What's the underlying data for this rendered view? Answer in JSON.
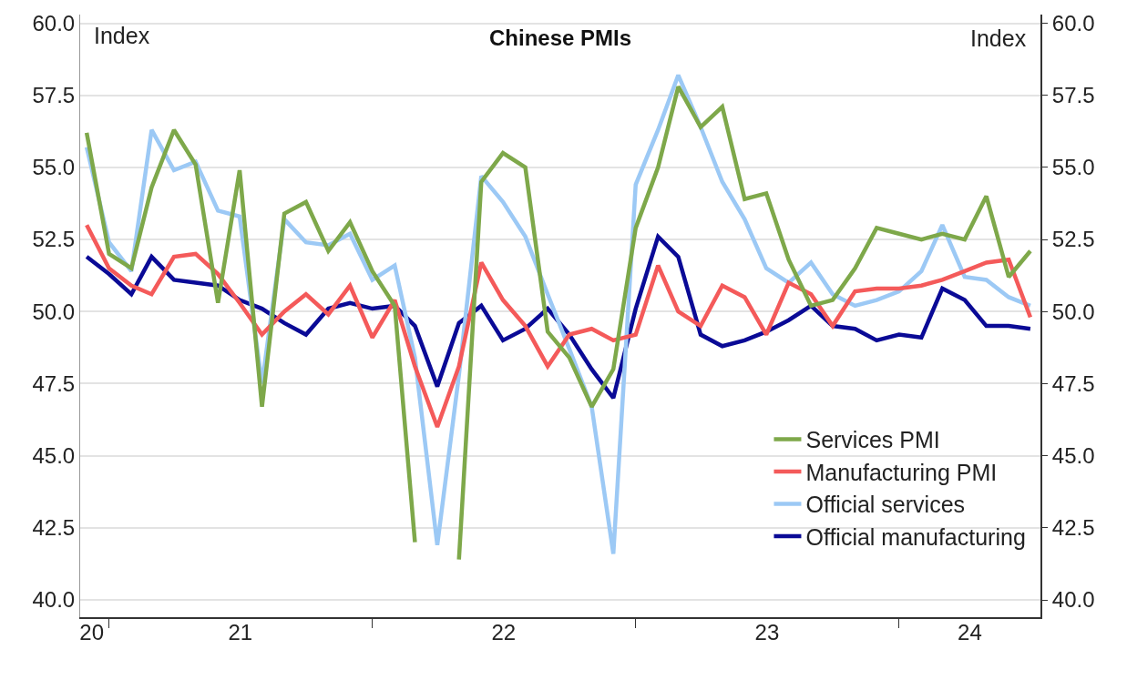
{
  "chart_data": {
    "type": "line",
    "title": "Chinese PMIs",
    "ylabel": "Index",
    "y2label": "Index",
    "x": [
      "2020-12",
      "2021-01",
      "2021-02",
      "2021-03",
      "2021-04",
      "2021-05",
      "2021-06",
      "2021-07",
      "2021-08",
      "2021-09",
      "2021-10",
      "2021-11",
      "2021-12",
      "2022-01",
      "2022-02",
      "2022-03",
      "2022-04",
      "2022-05",
      "2022-06",
      "2022-07",
      "2022-08",
      "2022-09",
      "2022-10",
      "2022-11",
      "2022-12",
      "2023-01",
      "2023-02",
      "2023-03",
      "2023-04",
      "2023-05",
      "2023-06",
      "2023-07",
      "2023-08",
      "2023-09",
      "2023-10",
      "2023-11",
      "2023-12",
      "2024-01",
      "2024-02",
      "2024-03",
      "2024-04",
      "2024-05",
      "2024-06",
      "2024-07"
    ],
    "series": [
      {
        "name": "Services PMI",
        "color": "#7ea84a",
        "values": [
          56.2,
          52.0,
          51.5,
          54.3,
          56.3,
          55.1,
          50.3,
          54.9,
          46.7,
          53.4,
          53.8,
          52.1,
          53.1,
          51.4,
          50.2,
          42.0,
          null,
          41.4,
          54.5,
          55.5,
          55.0,
          49.3,
          48.4,
          46.7,
          48.0,
          52.9,
          55.0,
          57.8,
          56.4,
          57.1,
          53.9,
          54.1,
          51.8,
          50.2,
          50.4,
          51.5,
          52.9,
          52.7,
          52.5,
          52.7,
          52.5,
          54.0,
          51.2,
          52.1
        ]
      },
      {
        "name": "Manufacturing PMI",
        "color": "#f45a5a",
        "values": [
          53.0,
          51.5,
          50.9,
          50.6,
          51.9,
          52.0,
          51.3,
          50.3,
          49.2,
          50.0,
          50.6,
          49.9,
          50.9,
          49.1,
          50.4,
          48.1,
          46.0,
          48.1,
          51.7,
          50.4,
          49.5,
          48.1,
          49.2,
          49.4,
          49.0,
          49.2,
          51.6,
          50.0,
          49.5,
          50.9,
          50.5,
          49.2,
          51.0,
          50.6,
          49.5,
          50.7,
          50.8,
          50.8,
          50.9,
          51.1,
          51.4,
          51.7,
          51.8,
          49.8
        ]
      },
      {
        "name": "Official services",
        "color": "#9cc9f5",
        "values": [
          55.7,
          52.4,
          51.4,
          56.3,
          54.9,
          55.2,
          53.5,
          53.3,
          47.5,
          53.2,
          52.4,
          52.3,
          52.7,
          51.1,
          51.6,
          48.4,
          41.9,
          47.8,
          54.7,
          53.8,
          52.6,
          50.6,
          48.7,
          46.7,
          41.6,
          54.4,
          56.3,
          58.2,
          56.4,
          54.5,
          53.2,
          51.5,
          51.0,
          51.7,
          50.6,
          50.2,
          50.4,
          50.7,
          51.4,
          53.0,
          51.2,
          51.1,
          50.5,
          50.2
        ]
      },
      {
        "name": "Official manufacturing",
        "color": "#0a0a96",
        "values": [
          51.9,
          51.3,
          50.6,
          51.9,
          51.1,
          51.0,
          50.9,
          50.4,
          50.1,
          49.6,
          49.2,
          50.1,
          50.3,
          50.1,
          50.2,
          49.5,
          47.4,
          49.6,
          50.2,
          49.0,
          49.4,
          50.1,
          49.2,
          48.0,
          47.0,
          50.1,
          52.6,
          51.9,
          49.2,
          48.8,
          49.0,
          49.3,
          49.7,
          50.2,
          49.5,
          49.4,
          49.0,
          49.2,
          49.1,
          50.8,
          50.4,
          49.5,
          49.5,
          49.4
        ]
      }
    ],
    "xlim": [
      "2020-11-22",
      "2024-07-15"
    ],
    "xticks": [
      {
        "value": "2021-01-01",
        "label": null
      },
      {
        "value": "2022-01-01",
        "label": null
      },
      {
        "value": "2023-01-01",
        "label": null
      },
      {
        "value": "2024-01-01",
        "label": null
      },
      {
        "value": "2020-12-08",
        "label": "20"
      },
      {
        "value": "2021-07-02",
        "label": "21"
      },
      {
        "value": "2022-07-02",
        "label": "22"
      },
      {
        "value": "2023-07-02",
        "label": "23"
      },
      {
        "value": "2024-04-08",
        "label": "24"
      }
    ],
    "ylim": [
      39.4,
      60.3
    ],
    "yticks": [
      {
        "value": 40,
        "label": "40.0"
      },
      {
        "value": 42.5,
        "label": "42.5"
      },
      {
        "value": 45,
        "label": "45.0"
      },
      {
        "value": 47.5,
        "label": "47.5"
      },
      {
        "value": 50,
        "label": "50.0"
      },
      {
        "value": 52.5,
        "label": "52.5"
      },
      {
        "value": 55,
        "label": "55.0"
      },
      {
        "value": 57.5,
        "label": "57.5"
      },
      {
        "value": 60,
        "label": "60.0"
      }
    ],
    "y2lim": [
      39.4,
      60.3
    ],
    "y2ticks": [
      {
        "value": 40,
        "label": "40.0"
      },
      {
        "value": 42.5,
        "label": "42.5"
      },
      {
        "value": 45,
        "label": "45.0"
      },
      {
        "value": 47.5,
        "label": "47.5"
      },
      {
        "value": 50,
        "label": "50.0"
      },
      {
        "value": 52.5,
        "label": "52.5"
      },
      {
        "value": 55,
        "label": "55.0"
      },
      {
        "value": 57.5,
        "label": "57.5"
      },
      {
        "value": 60,
        "label": "60.0"
      }
    ],
    "grid": "y",
    "legend": "bottom right",
    "marker": "none",
    "line_style": "solid"
  }
}
